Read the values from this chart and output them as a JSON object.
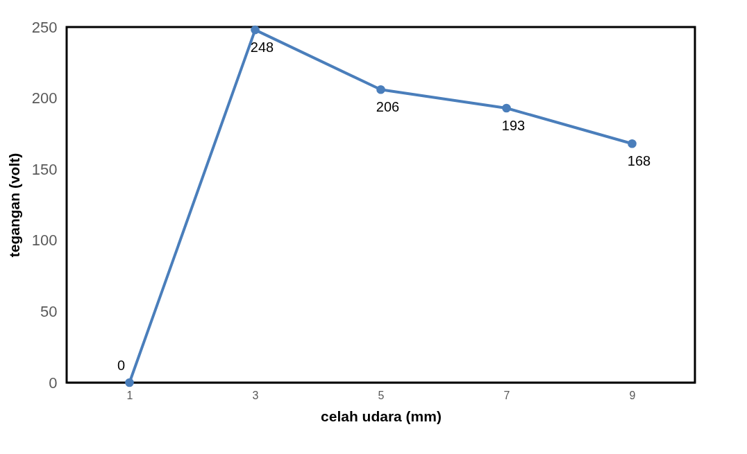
{
  "chart_data": {
    "type": "line",
    "xlabel": "celah udara (mm)",
    "ylabel": "tegangan (volt)",
    "categories": [
      "1",
      "3",
      "5",
      "7",
      "9"
    ],
    "series": [
      {
        "color": "#4a7ebb",
        "values": [
          0,
          248,
          206,
          193,
          168
        ]
      }
    ],
    "ylim": [
      0,
      250
    ],
    "yticks": [
      0,
      50,
      100,
      150,
      200,
      250
    ],
    "data_labels": true,
    "marker": "circle",
    "line_style": "solid",
    "grid": false
  }
}
